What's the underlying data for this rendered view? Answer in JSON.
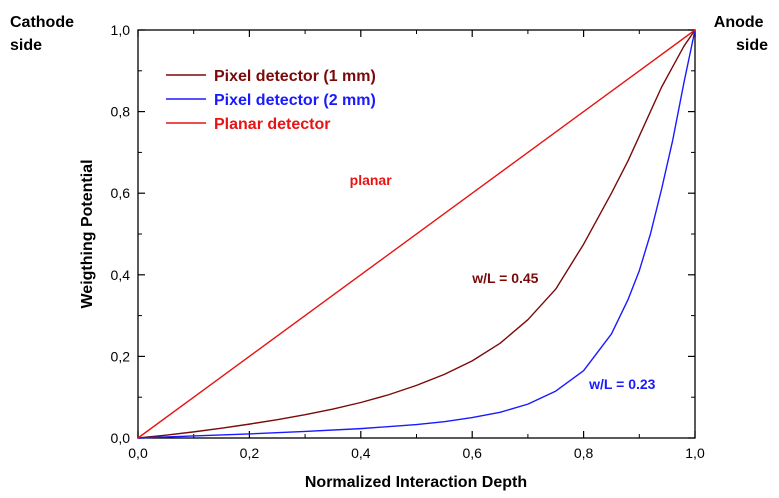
{
  "chart_data": {
    "type": "line",
    "title": "",
    "xlabel": "Normalized Interaction Depth",
    "ylabel": "Weigthing Potential",
    "xlim": [
      0,
      1
    ],
    "ylim": [
      0,
      1
    ],
    "xticks": [
      "0,0",
      "0,2",
      "0,4",
      "0,6",
      "0,8",
      "1,0"
    ],
    "yticks": [
      "0,0",
      "0,2",
      "0,4",
      "0,6",
      "0,8",
      "1,0"
    ],
    "grid": false,
    "legend_position": "top-left",
    "side_labels": {
      "left": "Cathode side",
      "right": "Anode side"
    },
    "series": [
      {
        "name": "Pixel detector (1 mm)",
        "color": "#7a0a0a",
        "x": [
          0,
          0.05,
          0.1,
          0.15,
          0.2,
          0.25,
          0.3,
          0.35,
          0.4,
          0.45,
          0.5,
          0.55,
          0.6,
          0.65,
          0.7,
          0.75,
          0.8,
          0.85,
          0.88,
          0.9,
          0.92,
          0.94,
          0.96,
          0.98,
          1.0
        ],
        "y": [
          0,
          0.007,
          0.015,
          0.024,
          0.034,
          0.045,
          0.057,
          0.071,
          0.087,
          0.106,
          0.129,
          0.156,
          0.189,
          0.232,
          0.29,
          0.365,
          0.475,
          0.6,
          0.68,
          0.74,
          0.8,
          0.86,
          0.91,
          0.96,
          1.0
        ]
      },
      {
        "name": "Pixel detector (2 mm)",
        "color": "#1a1aff",
        "x": [
          0,
          0.1,
          0.2,
          0.3,
          0.4,
          0.5,
          0.55,
          0.6,
          0.65,
          0.7,
          0.75,
          0.8,
          0.85,
          0.88,
          0.9,
          0.92,
          0.94,
          0.96,
          0.98,
          1.0
        ],
        "y": [
          0,
          0.005,
          0.01,
          0.016,
          0.023,
          0.033,
          0.04,
          0.05,
          0.063,
          0.083,
          0.115,
          0.165,
          0.255,
          0.34,
          0.41,
          0.5,
          0.61,
          0.73,
          0.87,
          1.0
        ]
      },
      {
        "name": "Planar detector",
        "color": "#e81414",
        "x": [
          0,
          1
        ],
        "y": [
          0,
          1
        ]
      }
    ],
    "annotations": [
      {
        "text": "planar",
        "x": 0.38,
        "y": 0.62,
        "color": "#e81414"
      },
      {
        "text": "w/L = 0.45",
        "x": 0.6,
        "y": 0.38,
        "color": "#7a0a0a"
      },
      {
        "text": "w/L = 0.23",
        "x": 0.81,
        "y": 0.12,
        "color": "#1a1aff"
      }
    ]
  }
}
